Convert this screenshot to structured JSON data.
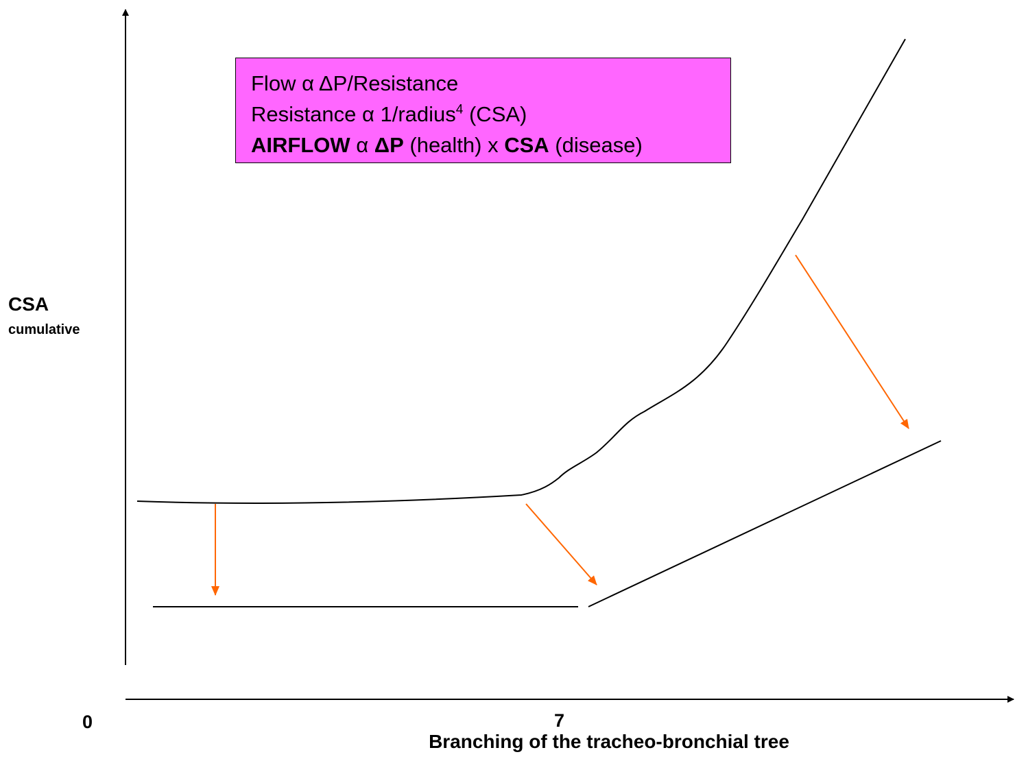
{
  "box": {
    "lines": [
      [
        "Flow α ΔP/Resistance"
      ],
      [
        "Resistance α 1/radius",
        "4",
        " (CSA)"
      ],
      [
        "AIRFLOW",
        " α ",
        "ΔP",
        " (health) x ",
        "CSA",
        " (disease)"
      ]
    ]
  },
  "y_axis": {
    "label": "CSA",
    "sublabel": "cumulative"
  },
  "x_axis": {
    "label": "Branching of the tracheo-bronchial tree",
    "ticks": [
      "0",
      "7"
    ]
  }
}
